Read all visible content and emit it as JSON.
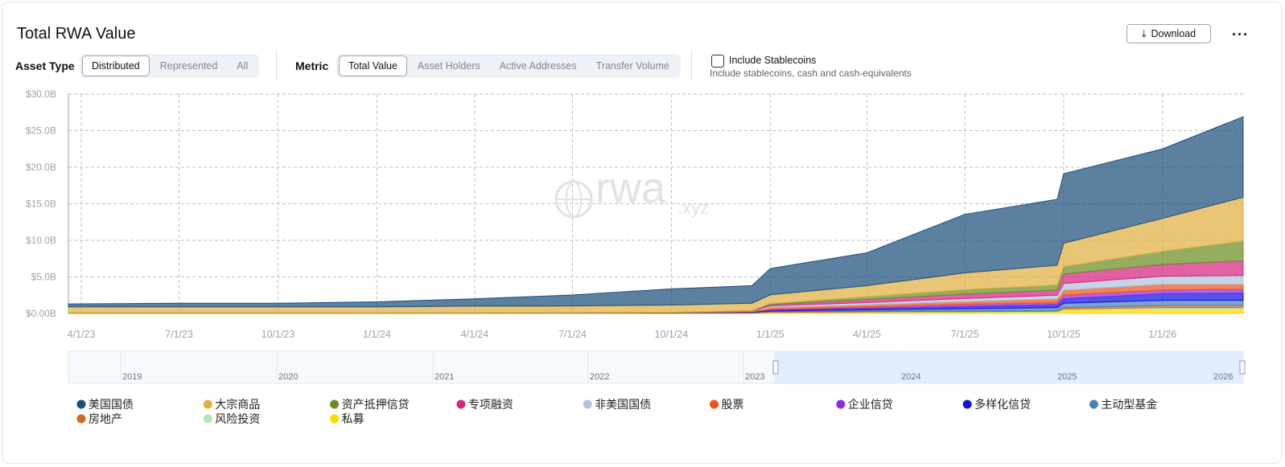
{
  "ui": {
    "title": "Total RWA Value",
    "download": "Download",
    "asset_type": {
      "label": "Asset Type",
      "options": [
        "Distributed",
        "Represented",
        "All"
      ],
      "active": 0
    },
    "metric": {
      "label": "Metric",
      "options": [
        "Total Value",
        "Asset Holders",
        "Active Addresses",
        "Transfer Volume"
      ],
      "active": 0
    },
    "stablecoins": {
      "label": "Include Stablecoins",
      "description": "Include stablecoins, cash and cash-equivalents"
    }
  },
  "chart_data": {
    "type": "stacked_area",
    "watermark": "rwa",
    "watermark_suffix": ".xyz",
    "x": [
      "3/20/23",
      "7/1/23",
      "10/1/23",
      "1/1/24",
      "4/1/24",
      "7/1/24",
      "10/1/24",
      "12/15/24",
      "1/1/25",
      "4/1/25",
      "7/1/25",
      "9/25/25",
      "10/1/25",
      "1/1/26",
      "3/17/26"
    ],
    "xlim": [
      "3/20/23",
      "3/17/26"
    ],
    "xticks": [
      "4/1/23",
      "7/1/23",
      "10/1/23",
      "1/1/24",
      "4/1/24",
      "7/1/24",
      "10/1/24",
      "1/1/25",
      "4/1/25",
      "7/1/25",
      "10/1/25",
      "1/1/26"
    ],
    "ylim": [
      0,
      30
    ],
    "yticks": [
      {
        "value": 0,
        "label": "$0.00B"
      },
      {
        "value": 5,
        "label": "$5.0B"
      },
      {
        "value": 10,
        "label": "$10.0B"
      },
      {
        "value": 15,
        "label": "$15.0B"
      },
      {
        "value": 20,
        "label": "$20.0B"
      },
      {
        "value": 25,
        "label": "$25.0B"
      },
      {
        "value": 30,
        "label": "$30.0B"
      }
    ],
    "grid": true,
    "series": [
      {
        "name": "美国国债",
        "color": "#1d4f7c",
        "values": [
          0.4,
          0.5,
          0.5,
          0.7,
          1.0,
          1.5,
          2.2,
          2.4,
          3.6,
          4.5,
          8.0,
          9.0,
          9.5,
          9.5,
          11.0
        ]
      },
      {
        "name": "大宗商品",
        "color": "#e0b040",
        "values": [
          0.8,
          0.8,
          0.8,
          0.8,
          0.9,
          0.9,
          1.0,
          1.0,
          1.2,
          1.5,
          2.3,
          2.7,
          3.2,
          4.5,
          6.0
        ]
      },
      {
        "name": "资产抵押信贷",
        "color": "#6b8e23",
        "values": [
          0.02,
          0.02,
          0.02,
          0.02,
          0.03,
          0.04,
          0.05,
          0.05,
          0.1,
          0.4,
          0.6,
          0.7,
          1.0,
          1.8,
          2.7
        ]
      },
      {
        "name": "专项融资",
        "color": "#d6247f",
        "values": [
          0,
          0,
          0,
          0,
          0,
          0,
          0,
          0,
          0.2,
          0.4,
          0.6,
          0.7,
          1.3,
          1.6,
          2.0
        ]
      },
      {
        "name": "非美国国债",
        "color": "#b0c4de",
        "values": [
          0,
          0,
          0,
          0,
          0,
          0,
          0,
          0.05,
          0.2,
          0.3,
          0.4,
          0.5,
          0.9,
          1.1,
          1.2
        ]
      },
      {
        "name": "股票",
        "color": "#f0521a",
        "values": [
          0,
          0,
          0,
          0,
          0,
          0.01,
          0.02,
          0.05,
          0.3,
          0.3,
          0.4,
          0.5,
          0.7,
          0.8,
          0.7
        ]
      },
      {
        "name": "企业信贷",
        "color": "#8a2be2",
        "values": [
          0,
          0,
          0,
          0,
          0,
          0,
          0.01,
          0.05,
          0.1,
          0.2,
          0.3,
          0.3,
          0.5,
          0.5,
          0.5
        ]
      },
      {
        "name": "多样化信贷",
        "color": "#1010e0",
        "values": [
          0,
          0,
          0,
          0,
          0,
          0,
          0,
          0.05,
          0.1,
          0.2,
          0.3,
          0.4,
          0.6,
          0.9,
          1.0
        ]
      },
      {
        "name": "主动型基金",
        "color": "#4682b4",
        "values": [
          0,
          0,
          0,
          0,
          0,
          0,
          0,
          0.05,
          0.1,
          0.2,
          0.3,
          0.4,
          0.6,
          0.7,
          0.7
        ]
      },
      {
        "name": "房地产",
        "color": "#d2691e",
        "values": [
          0.05,
          0.05,
          0.05,
          0.05,
          0.05,
          0.05,
          0.05,
          0.05,
          0.1,
          0.1,
          0.1,
          0.1,
          0.2,
          0.3,
          0.3
        ]
      },
      {
        "name": "风险投资",
        "color": "#b5e6b5",
        "values": [
          0,
          0,
          0,
          0,
          0,
          0,
          0,
          0,
          0.05,
          0.05,
          0.05,
          0.1,
          0.1,
          0.2,
          0.2
        ]
      },
      {
        "name": "私募",
        "color": "#ffd700",
        "values": [
          0.03,
          0.03,
          0.03,
          0.03,
          0.03,
          0.03,
          0.03,
          0.05,
          0.1,
          0.15,
          0.2,
          0.2,
          0.5,
          0.6,
          0.6
        ]
      }
    ],
    "navigator_labels": [
      "2019",
      "2020",
      "2021",
      "2022",
      "2023",
      "2024",
      "2025",
      "2026"
    ]
  }
}
